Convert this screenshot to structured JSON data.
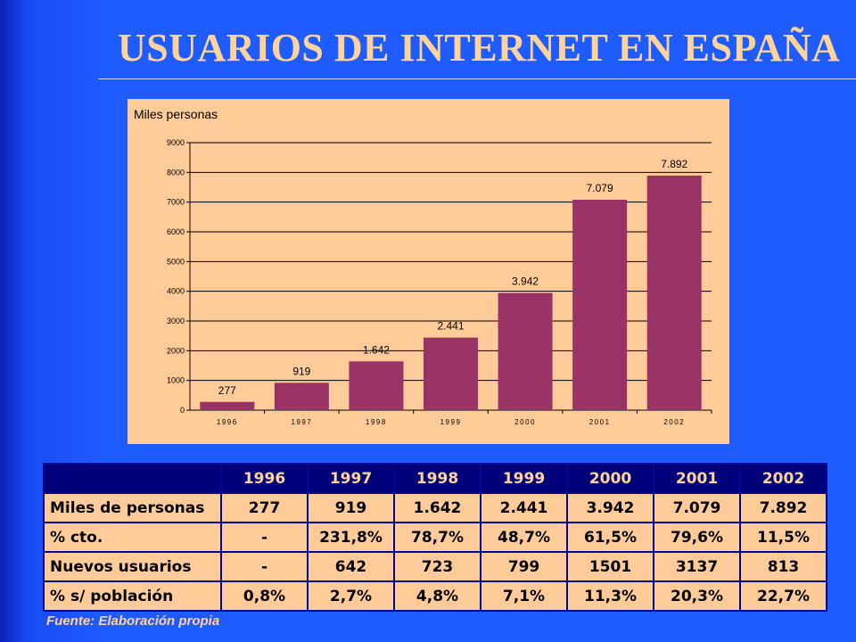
{
  "title": "USUARIOS DE INTERNET EN ESPAÑA",
  "chart_data": {
    "type": "bar",
    "ylabel": "Miles personas",
    "categories": [
      "1996",
      "1997",
      "1998",
      "1999",
      "2000",
      "2001",
      "2002"
    ],
    "values": [
      277,
      919,
      1642,
      2441,
      3942,
      7079,
      7892
    ],
    "data_labels": [
      "277",
      "919",
      "1.642",
      "2.441",
      "3.942",
      "7.079",
      "7.892"
    ],
    "yticks": [
      "0",
      "1000",
      "2000",
      "3000",
      "4000",
      "5000",
      "6000",
      "7000",
      "8000",
      "9000"
    ],
    "ylim": [
      0,
      9000
    ],
    "grid": true,
    "bar_color": "#993366",
    "background": "#ffcc99"
  },
  "table": {
    "corner": "",
    "years": [
      "1996",
      "1997",
      "1998",
      "1999",
      "2000",
      "2001",
      "2002"
    ],
    "rows": [
      {
        "label": "Miles de personas",
        "values": [
          "277",
          "919",
          "1.642",
          "2.441",
          "3.942",
          "7.079",
          "7.892"
        ]
      },
      {
        "label": "% cto.",
        "values": [
          "-",
          "231,8%",
          "78,7%",
          "48,7%",
          "61,5%",
          "79,6%",
          "11,5%"
        ]
      },
      {
        "label": "Nuevos usuarios",
        "values": [
          "-",
          "642",
          "723",
          "799",
          "1501",
          "3137",
          "813"
        ]
      },
      {
        "label": "% s/ población",
        "values": [
          "0,8%",
          "2,7%",
          "4,8%",
          "7,1%",
          "11,3%",
          "20,3%",
          "22,7%"
        ]
      }
    ]
  },
  "source": "Fuente: Elaboración propia",
  "colors": {
    "background": "#1f5cff",
    "title": "#ffd39a",
    "header_bg": "#00007a",
    "cell_bg": "#ffcc99"
  }
}
